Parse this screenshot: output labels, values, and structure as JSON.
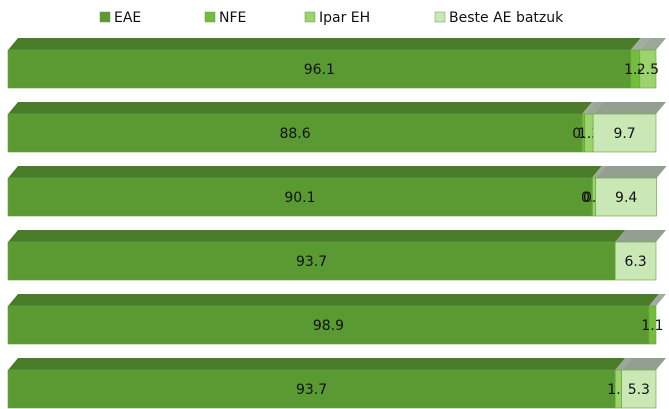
{
  "chart_data": {
    "type": "stacked-bar-horizontal",
    "xlim": [
      0,
      100
    ],
    "series": [
      {
        "name": "EAE",
        "color": "#5b9a33",
        "values": [
          96.1,
          88.6,
          90.1,
          93.7,
          98.9,
          93.7
        ]
      },
      {
        "name": "NFE",
        "color": "#74bc3c",
        "values": [
          1.4,
          0.4,
          0.1,
          null,
          1.1,
          null
        ]
      },
      {
        "name": "Ipar EH",
        "color": "#9bd36c",
        "values": [
          2.5,
          1.3,
          0.5,
          null,
          null,
          1.0
        ],
        "value_labels": [
          "2.5",
          "1.3",
          "0.5",
          null,
          null,
          "1.0"
        ]
      },
      {
        "name": "Beste AE batzuk",
        "color": "#c9e8b5",
        "values": [
          null,
          9.7,
          9.4,
          6.3,
          null,
          5.3
        ]
      }
    ],
    "legend": "top"
  }
}
